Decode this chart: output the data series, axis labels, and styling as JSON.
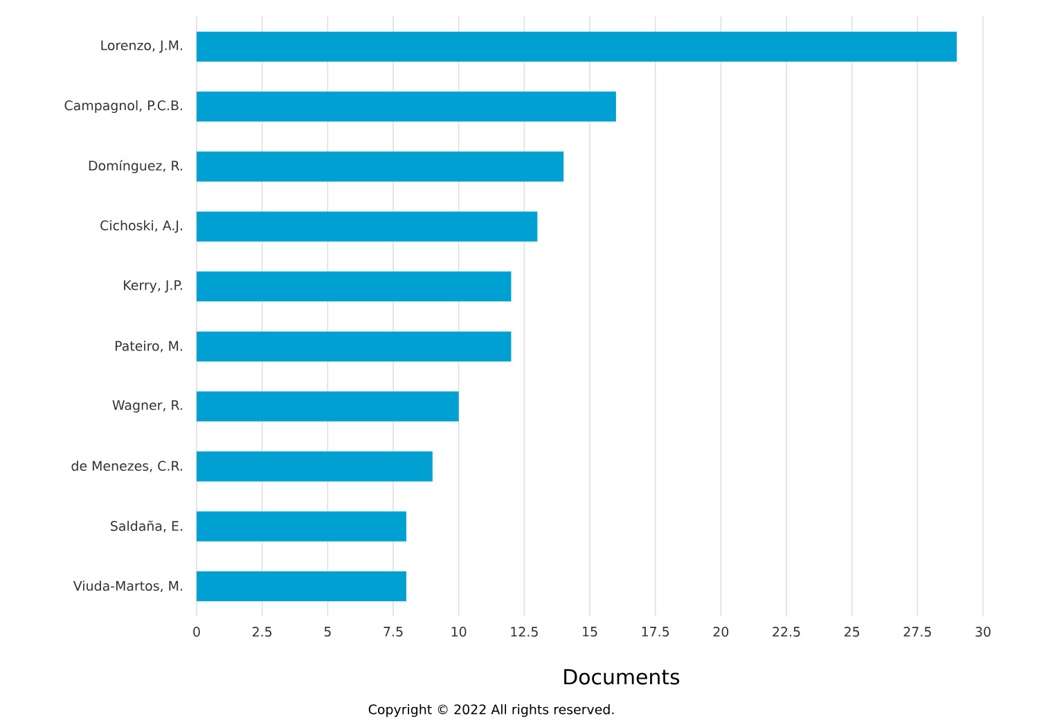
{
  "chart_data": {
    "type": "bar",
    "orientation": "horizontal",
    "categories": [
      "Lorenzo, J.M.",
      "Campagnol, P.C.B.",
      "Domínguez, R.",
      "Cichoski, A.J.",
      "Kerry, J.P.",
      "Pateiro, M.",
      "Wagner, R.",
      "de Menezes, C.R.",
      "Saldaña, E.",
      "Viuda-Martos, M."
    ],
    "values": [
      29,
      16,
      14,
      13,
      12,
      12,
      10,
      9,
      8,
      8
    ],
    "color": "#00a0d2",
    "xlabel": "Documents",
    "xlim": [
      0,
      30
    ],
    "xticks": [
      0,
      2.5,
      5,
      7.5,
      10,
      12.5,
      15,
      17.5,
      20,
      22.5,
      25,
      27.5,
      30
    ],
    "grid": "x",
    "annotations": [
      "Copyright © 2022 All rights reserved."
    ]
  }
}
